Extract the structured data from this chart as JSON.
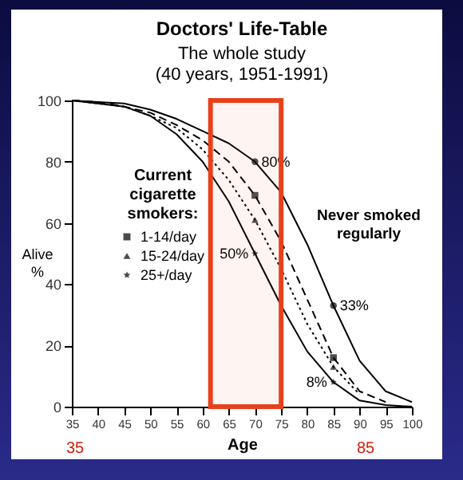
{
  "chart_data": {
    "type": "line",
    "title": "Doctors' Life-Table",
    "subtitle": "The whole study (40 years, 1951-1991)",
    "xlabel": "Age",
    "ylabel": "Alive %",
    "legend_title": "Current cigarette smokers:",
    "xlim": [
      35,
      100
    ],
    "xticks": [
      35,
      40,
      45,
      50,
      55,
      60,
      65,
      70,
      75,
      80,
      85,
      90,
      95,
      100
    ],
    "ylim": [
      0,
      100
    ],
    "yticks": [
      0,
      20,
      40,
      60,
      80,
      100
    ],
    "grid": false,
    "legend": "left",
    "series": [
      {
        "color": "#000000",
        "line_style": "solid",
        "x": [
          35,
          40,
          45,
          50,
          55,
          60,
          65,
          70,
          75,
          80,
          85,
          90,
          95,
          100
        ],
        "values": [
          100,
          99.5,
          99,
          97,
          94,
          90,
          86,
          80,
          70,
          53,
          33,
          15,
          5,
          1.5
        ]
      },
      {
        "color": "#000000",
        "line_style": "dashed",
        "x": [
          35,
          40,
          45,
          50,
          55,
          60,
          65,
          70,
          75,
          80,
          85,
          90,
          95
        ],
        "values": [
          100,
          99.5,
          98,
          96,
          92,
          87,
          80,
          69,
          54,
          35,
          16,
          5,
          1.5
        ]
      },
      {
        "color": "#000000",
        "line_style": "dotted",
        "x": [
          35,
          40,
          45,
          50,
          55,
          60,
          65,
          70,
          75,
          80,
          85,
          90
        ],
        "values": [
          100,
          99,
          98,
          95,
          91,
          84,
          74,
          61,
          45,
          27,
          13,
          4
        ]
      },
      {
        "color": "#000000",
        "line_style": "solid",
        "x": [
          35,
          40,
          45,
          50,
          55,
          60,
          65,
          70,
          75,
          80,
          85,
          90,
          95,
          100
        ],
        "values": [
          100,
          99,
          98,
          95,
          89,
          80,
          67,
          50,
          33,
          18,
          8,
          2,
          0.5,
          0
        ]
      },
      {
        "type": "scatter",
        "color": "#000000",
        "marker": "circle",
        "x": [
          70,
          85
        ],
        "values": [
          80,
          33
        ],
        "value_labels": [
          "80%",
          "33%"
        ]
      },
      {
        "type": "scatter",
        "name": "1-14/day",
        "color": "#000000",
        "marker": "square",
        "x": [
          70,
          85
        ],
        "values": [
          69,
          16
        ]
      },
      {
        "type": "scatter",
        "name": "15-24/day",
        "color": "#000000",
        "marker": "triangle",
        "x": [
          70,
          85
        ],
        "values": [
          61,
          13
        ]
      },
      {
        "type": "scatter",
        "name": "25+/day",
        "color": "#000000",
        "marker": "star",
        "x": [
          70,
          85
        ],
        "values": [
          50,
          8
        ],
        "value_labels": [
          "50%",
          "8%"
        ]
      }
    ],
    "bands": [
      {
        "axis": "x",
        "from": 61.5,
        "to": 75,
        "color": "#e8401c"
      }
    ],
    "annotations": [
      "Never smoked regularly",
      "35",
      "85"
    ]
  }
}
